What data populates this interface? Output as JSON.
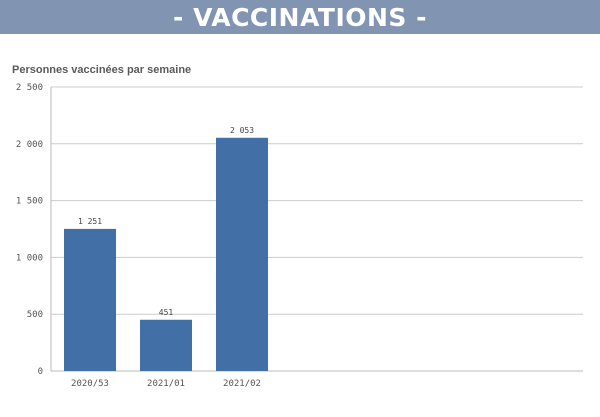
{
  "header": {
    "title": "- VACCINATIONS -"
  },
  "chart_data": {
    "type": "bar",
    "title": "Personnes vaccinées par semaine",
    "xlabel": "",
    "ylabel": "",
    "categories": [
      "2020/53",
      "2021/01",
      "2021/02"
    ],
    "values": [
      1251,
      451,
      2053
    ],
    "value_labels": [
      "1 251",
      "451",
      "2 053"
    ],
    "ylim": [
      0,
      2500
    ],
    "yticks": [
      0,
      500,
      1000,
      1500,
      2000,
      2500
    ],
    "ytick_labels": [
      "0",
      "500",
      "1 000",
      "1 500",
      "2 000",
      "2 500"
    ],
    "grid": true,
    "legend": "none",
    "bar_color": "#4270a6",
    "grid_color": "#cccccc"
  }
}
